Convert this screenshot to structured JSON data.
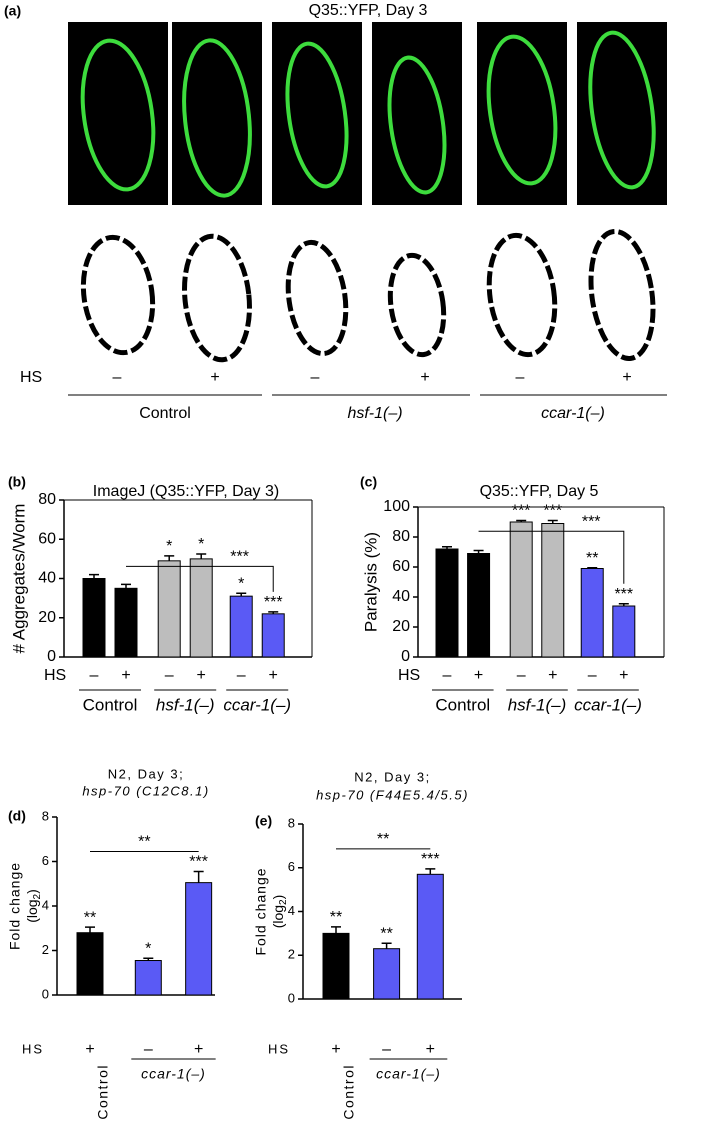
{
  "panel_a": {
    "label": "(a)",
    "title": "Q35::YFP, Day 3",
    "hs_label": "HS",
    "hs_signs": [
      "–",
      "+",
      "–",
      "+",
      "–",
      "+"
    ],
    "groups": [
      "Control",
      "hsf-1(–)",
      "ccar-1(–)"
    ]
  },
  "chart_data": [
    {
      "type": "bar",
      "panel": "(b)",
      "title": [
        "ImageJ (Q35::YFP, Day 3)"
      ],
      "ylabel": [
        "# Aggregates/Worm"
      ],
      "hs_label": "HS",
      "categories": [
        "–",
        "+",
        "–",
        "+",
        "–",
        "+"
      ],
      "values": [
        40,
        35,
        49,
        50,
        31,
        22
      ],
      "errors": [
        2,
        2,
        2.5,
        2.5,
        1.5,
        1
      ],
      "colors": [
        "#000000",
        "#000000",
        "#bdbdbd",
        "#bdbdbd",
        "#5a5af5",
        "#5a5af5"
      ],
      "ylim": [
        0,
        80
      ],
      "yticks": [
        0,
        20,
        40,
        60,
        80
      ],
      "frame": true,
      "groups": [
        {
          "name": "Control",
          "size": 2
        },
        {
          "name": "hsf-1(–)",
          "size": 2
        },
        {
          "name": "ccar-1(–)",
          "size": 2
        }
      ],
      "annotations": [
        {
          "bar": 2,
          "text": "*"
        },
        {
          "bar": 3,
          "text": "*"
        },
        {
          "bar": 4,
          "text": "*"
        },
        {
          "bar": 5,
          "text": "***"
        }
      ],
      "bracket": {
        "from": 1,
        "to": 5,
        "text": "***"
      }
    },
    {
      "type": "bar",
      "panel": "(c)",
      "title": [
        "Q35::YFP, Day 5"
      ],
      "ylabel": [
        "Paralysis (%)"
      ],
      "hs_label": "HS",
      "categories": [
        "–",
        "+",
        "–",
        "+",
        "–",
        "+"
      ],
      "values": [
        72,
        69,
        90,
        89,
        59,
        34
      ],
      "errors": [
        1.5,
        2,
        1,
        2,
        0.5,
        1.5
      ],
      "colors": [
        "#000000",
        "#000000",
        "#bdbdbd",
        "#bdbdbd",
        "#5a5af5",
        "#5a5af5"
      ],
      "ylim": [
        0,
        100
      ],
      "yticks": [
        0,
        20,
        40,
        60,
        80,
        100
      ],
      "frame": true,
      "groups": [
        {
          "name": "Control",
          "size": 2
        },
        {
          "name": "hsf-1(–)",
          "size": 2
        },
        {
          "name": "ccar-1(–)",
          "size": 2
        }
      ],
      "annotations": [
        {
          "bar": 2,
          "text": "***"
        },
        {
          "bar": 3,
          "text": "***"
        },
        {
          "bar": 4,
          "text": "**"
        },
        {
          "bar": 5,
          "text": "***"
        }
      ],
      "bracket": {
        "from": 1,
        "to": 5,
        "text": "***"
      }
    },
    {
      "type": "bar",
      "panel": "(d)",
      "title": [
        "N2, Day 3;",
        "hsp-70 (C12C8.1)"
      ],
      "ylabel": [
        "Fold change",
        "(log",
        "2",
        ")"
      ],
      "hs_label": "HS",
      "categories": [
        "+",
        "–",
        "+"
      ],
      "values": [
        2.8,
        1.55,
        5.05
      ],
      "errors": [
        0.25,
        0.1,
        0.5
      ],
      "colors": [
        "#000000",
        "#5a5af5",
        "#5a5af5"
      ],
      "ylim": [
        0,
        8
      ],
      "yticks": [
        0,
        2,
        4,
        6,
        8
      ],
      "frame": false,
      "groups": [
        {
          "name": "Control",
          "size": 1
        },
        {
          "name": "ccar-1(–)",
          "size": 2
        }
      ],
      "annotations": [
        {
          "bar": 0,
          "text": "**"
        },
        {
          "bar": 1,
          "text": "*"
        },
        {
          "bar": 2,
          "text": "***"
        }
      ],
      "bracket": {
        "from": 0,
        "to": 2,
        "text": "**"
      }
    },
    {
      "type": "bar",
      "panel": "(e)",
      "title": [
        "N2, Day 3;",
        "hsp-70 (F44E5.4/5.5)"
      ],
      "ylabel": [
        "Fold change",
        "(log",
        "2",
        ")"
      ],
      "hs_label": "HS",
      "categories": [
        "+",
        "–",
        "+"
      ],
      "values": [
        3.0,
        2.3,
        5.7
      ],
      "errors": [
        0.3,
        0.25,
        0.25
      ],
      "colors": [
        "#000000",
        "#5a5af5",
        "#5a5af5"
      ],
      "ylim": [
        0,
        8
      ],
      "yticks": [
        0,
        2,
        4,
        6,
        8
      ],
      "frame": false,
      "groups": [
        {
          "name": "Control",
          "size": 1
        },
        {
          "name": "ccar-1(–)",
          "size": 2
        }
      ],
      "annotations": [
        {
          "bar": 0,
          "text": "**"
        },
        {
          "bar": 1,
          "text": "**"
        },
        {
          "bar": 2,
          "text": "***"
        }
      ],
      "bracket": {
        "from": 0,
        "to": 2,
        "text": "**"
      }
    }
  ]
}
